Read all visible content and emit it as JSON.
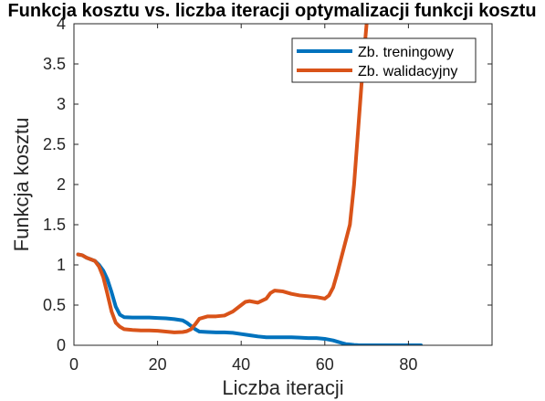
{
  "chart_data": {
    "type": "line",
    "title": "Funkcja kosztu vs. liczba iteracji optymalizacji funkcji kosztu",
    "xlabel": "Liczba iteracji",
    "ylabel": "Funkcja kosztu",
    "xlim": [
      0,
      100
    ],
    "ylim": [
      0,
      4
    ],
    "xticks": [
      0,
      20,
      40,
      60,
      80
    ],
    "yticks": [
      0,
      0.5,
      1,
      1.5,
      2,
      2.5,
      3,
      3.5,
      4
    ],
    "ytick_labels": [
      "0",
      "0.5",
      "1",
      "1.5",
      "2",
      "2.5",
      "3",
      "3.5",
      "4"
    ],
    "grid": false,
    "legend_position": "top-right",
    "series": [
      {
        "name": "Zb. treningowy",
        "color": "#0072BD",
        "x": [
          1,
          2,
          3,
          4,
          5,
          6,
          7,
          8,
          9,
          10,
          11,
          12,
          14,
          16,
          18,
          20,
          22,
          24,
          26,
          27,
          28,
          29,
          30,
          32,
          34,
          36,
          38,
          40,
          42,
          44,
          46,
          48,
          50,
          52,
          54,
          56,
          58,
          60,
          61,
          62,
          63,
          64,
          65,
          66,
          67,
          68,
          70,
          74,
          78,
          83
        ],
        "y": [
          1.13,
          1.12,
          1.09,
          1.07,
          1.05,
          1.0,
          0.93,
          0.82,
          0.66,
          0.48,
          0.38,
          0.35,
          0.345,
          0.345,
          0.345,
          0.34,
          0.335,
          0.325,
          0.31,
          0.28,
          0.24,
          0.2,
          0.17,
          0.165,
          0.16,
          0.16,
          0.155,
          0.14,
          0.125,
          0.11,
          0.1,
          0.1,
          0.1,
          0.1,
          0.095,
          0.09,
          0.09,
          0.08,
          0.07,
          0.06,
          0.045,
          0.03,
          0.015,
          0.01,
          0.005,
          0.002,
          0.0,
          0.0,
          0.0,
          0.0
        ]
      },
      {
        "name": "Zb. walidacyjny",
        "color": "#D95319",
        "x": [
          1,
          2,
          3,
          4,
          5,
          6,
          7,
          8,
          9,
          10,
          11,
          12,
          14,
          16,
          18,
          20,
          22,
          24,
          26,
          27,
          28,
          29,
          30,
          32,
          34,
          36,
          38,
          40,
          41,
          42,
          44,
          46,
          47,
          48,
          50,
          52,
          54,
          56,
          58,
          60,
          61,
          62,
          63,
          64,
          65,
          66,
          67,
          68,
          69,
          70
        ],
        "y": [
          1.13,
          1.12,
          1.09,
          1.07,
          1.05,
          0.98,
          0.85,
          0.64,
          0.42,
          0.28,
          0.23,
          0.2,
          0.19,
          0.185,
          0.185,
          0.18,
          0.17,
          0.16,
          0.165,
          0.175,
          0.2,
          0.26,
          0.33,
          0.36,
          0.36,
          0.37,
          0.42,
          0.5,
          0.54,
          0.55,
          0.53,
          0.58,
          0.65,
          0.68,
          0.67,
          0.64,
          0.62,
          0.61,
          0.6,
          0.58,
          0.62,
          0.72,
          0.9,
          1.1,
          1.3,
          1.5,
          2.0,
          2.7,
          3.4,
          4.0
        ]
      }
    ]
  }
}
